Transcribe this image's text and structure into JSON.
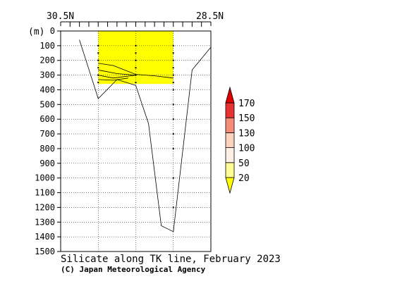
{
  "chart_data": {
    "type": "area",
    "title": "Silicate along TK line, February 2023",
    "credit": "(C) Japan Meteorological Agency",
    "xlabel": "",
    "ylabel": "(m)",
    "x_end_labels": [
      "30.5N",
      "28.5N"
    ],
    "x_range": [
      30.5,
      28.5
    ],
    "ylim": [
      0,
      1500
    ],
    "y_inverted": true,
    "yticks": [
      0,
      100,
      200,
      300,
      400,
      500,
      600,
      700,
      800,
      900,
      1000,
      1100,
      1200,
      1300,
      1400,
      1500
    ],
    "grid": true,
    "x_top_ticks": [
      30.5,
      30.375,
      30.25,
      30.125,
      30.0,
      29.875,
      29.75,
      29.625,
      29.5,
      29.375,
      29.25,
      29.125,
      29.0,
      28.875,
      28.75,
      28.625,
      28.5
    ],
    "station_lat": [
      30.0,
      29.5,
      29.0
    ],
    "station_depths": [
      [
        100,
        150,
        200,
        250,
        300,
        350
      ],
      [
        100,
        150,
        200,
        250,
        300,
        350
      ],
      [
        100,
        150,
        200,
        250,
        300,
        350,
        400,
        500,
        600,
        700,
        800,
        1000,
        1200
      ]
    ],
    "filled_region": {
      "range_label": "20-50",
      "color": "#ffff00",
      "lat_range": [
        30.0,
        29.0
      ],
      "depth_range": [
        0,
        360
      ]
    },
    "contours": [
      {
        "level": 50,
        "points": [
          [
            30.0,
            220
          ],
          [
            29.8,
            235
          ],
          [
            29.5,
            295
          ],
          [
            29.25,
            305
          ],
          [
            29.0,
            320
          ]
        ]
      },
      {
        "level": 50,
        "points": [
          [
            30.0,
            265
          ],
          [
            29.75,
            290
          ],
          [
            29.5,
            300
          ]
        ]
      },
      {
        "level": 50,
        "points": [
          [
            30.0,
            300
          ],
          [
            29.8,
            320
          ],
          [
            29.5,
            300
          ]
        ]
      },
      {
        "level": 50,
        "points": [
          [
            30.0,
            330
          ],
          [
            29.8,
            335
          ],
          [
            29.6,
            320
          ]
        ]
      }
    ],
    "bottom_profile": [
      [
        30.25,
        60
      ],
      [
        30.0,
        460
      ],
      [
        29.75,
        330
      ],
      [
        29.5,
        370
      ],
      [
        29.33,
        630
      ],
      [
        29.16,
        1325
      ],
      [
        29.0,
        1365
      ],
      [
        28.75,
        265
      ],
      [
        28.5,
        110
      ]
    ],
    "colorbar": {
      "levels": [
        20,
        50,
        100,
        130,
        150,
        170
      ],
      "colors": [
        "#ffff00",
        "#ffff96",
        "#fff0e6",
        "#fcd2be",
        "#f58c78",
        "#e63232",
        "#e10000"
      ]
    }
  }
}
